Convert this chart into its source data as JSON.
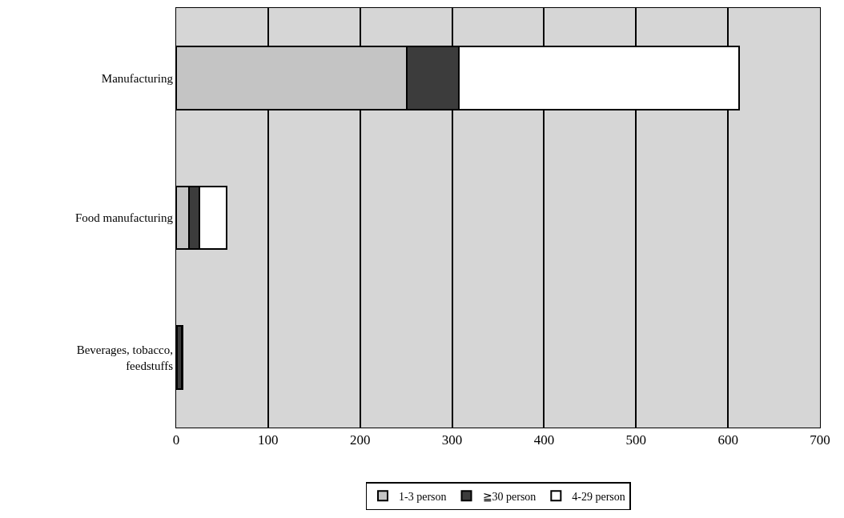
{
  "chart_data": {
    "type": "bar",
    "orientation": "horizontal",
    "stacked": true,
    "categories": [
      "Manufacturing",
      "Food manufacturing",
      "Beverages, tobacco, feedstuffs"
    ],
    "series": [
      {
        "name": "1-3 person",
        "color": "#c4c4c4",
        "values": [
          251,
          14,
          1
        ]
      },
      {
        "name": "≧30 person",
        "color": "#3c3c3c",
        "values": [
          56,
          11,
          5
        ]
      },
      {
        "name": "4-29 person",
        "color": "#ffffff",
        "values": [
          305,
          30,
          1
        ]
      }
    ],
    "xlim": [
      0,
      700
    ],
    "xticks": [
      0,
      100,
      200,
      300,
      400,
      500,
      600,
      700
    ],
    "grid": "x",
    "legend": "bottom"
  }
}
